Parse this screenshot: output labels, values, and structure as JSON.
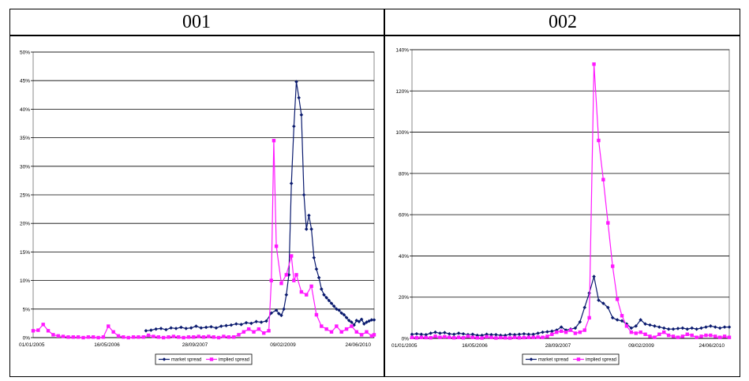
{
  "panels": [
    {
      "title": "001"
    },
    {
      "title": "002"
    }
  ],
  "colors": {
    "market": "#0a1a6e",
    "implied": "#ff19ff"
  },
  "chart_data": [
    {
      "type": "line",
      "x_ticks": [
        "01/01/2005",
        "16/05/2006",
        "28/09/2007",
        "09/02/2009",
        "24/06/2010"
      ],
      "x_range": [
        "2005-01-01",
        "2010-06-24"
      ],
      "y_ticks": [
        "0%",
        "5%",
        "10%",
        "15%",
        "20%",
        "25%",
        "30%",
        "35%",
        "40%",
        "45%",
        "50%"
      ],
      "ylim": [
        0,
        50
      ],
      "grid": "horizontal",
      "legend": "bottom",
      "series": [
        {
          "name": "market spread",
          "color": "#0a1a6e",
          "marker": "diamond",
          "x": [
            1.8,
            1.88,
            1.96,
            2.04,
            2.12,
            2.2,
            2.28,
            2.36,
            2.44,
            2.52,
            2.6,
            2.68,
            2.76,
            2.84,
            2.92,
            3.0,
            3.08,
            3.16,
            3.24,
            3.32,
            3.4,
            3.48,
            3.56,
            3.64,
            3.72,
            3.8,
            3.88,
            3.92,
            3.96,
            4.0,
            4.04,
            4.08,
            4.12,
            4.16,
            4.2,
            4.24,
            4.28,
            4.32,
            4.36,
            4.4,
            4.44,
            4.48,
            4.52,
            4.56,
            4.6,
            4.64,
            4.68,
            4.72,
            4.76,
            4.8,
            4.84,
            4.88,
            4.92,
            4.96,
            5.0,
            5.04,
            5.08,
            5.12,
            5.16,
            5.2,
            5.24,
            5.28,
            5.32,
            5.36,
            5.4,
            5.44
          ],
          "y": [
            1.2,
            1.3,
            1.5,
            1.6,
            1.4,
            1.7,
            1.6,
            1.8,
            1.6,
            1.7,
            2.0,
            1.7,
            1.8,
            1.9,
            1.7,
            2.0,
            2.1,
            2.2,
            2.4,
            2.3,
            2.6,
            2.5,
            2.8,
            2.7,
            2.9,
            4.3,
            4.8,
            4.2,
            3.9,
            5.0,
            7.5,
            11.0,
            27.0,
            37.0,
            44.8,
            42.0,
            39.0,
            25.0,
            19.0,
            21.4,
            19.0,
            14.0,
            12.0,
            10.5,
            8.5,
            7.5,
            7.0,
            6.5,
            6.0,
            5.5,
            5.0,
            4.8,
            4.3,
            4.0,
            3.5,
            3.0,
            2.7,
            2.2,
            3.0,
            2.8,
            3.2,
            2.4,
            2.7,
            2.9,
            3.1,
            3.1
          ]
        },
        {
          "name": "implied spread",
          "color": "#ff19ff",
          "marker": "square",
          "x": [
            0.0,
            0.08,
            0.16,
            0.24,
            0.32,
            0.4,
            0.48,
            0.56,
            0.64,
            0.72,
            0.8,
            0.88,
            0.96,
            1.04,
            1.12,
            1.2,
            1.28,
            1.36,
            1.44,
            1.52,
            1.6,
            1.68,
            1.76,
            1.84,
            1.92,
            2.0,
            2.08,
            2.16,
            2.24,
            2.32,
            2.4,
            2.48,
            2.56,
            2.64,
            2.72,
            2.8,
            2.88,
            2.96,
            3.04,
            3.12,
            3.2,
            3.28,
            3.36,
            3.44,
            3.52,
            3.6,
            3.68,
            3.76,
            3.8,
            3.84,
            3.88,
            3.96,
            4.04,
            4.12,
            4.16,
            4.2,
            4.28,
            4.36,
            4.44,
            4.52,
            4.6,
            4.68,
            4.76,
            4.84,
            4.92,
            5.0,
            5.08,
            5.16,
            5.24,
            5.32,
            5.4,
            5.44
          ],
          "y": [
            1.2,
            1.3,
            2.3,
            1.2,
            0.5,
            0.3,
            0.2,
            0.1,
            0.1,
            0.1,
            0.0,
            0.1,
            0.1,
            0.0,
            0.1,
            2.0,
            1.0,
            0.3,
            0.1,
            0.0,
            0.1,
            0.1,
            0.1,
            0.4,
            0.2,
            0.1,
            0.0,
            0.1,
            0.2,
            0.1,
            0.0,
            0.1,
            0.1,
            0.2,
            0.1,
            0.2,
            0.1,
            0.0,
            0.2,
            0.1,
            0.1,
            0.5,
            1.0,
            1.5,
            1.0,
            1.5,
            0.8,
            1.2,
            10.0,
            34.5,
            16.0,
            9.5,
            11.0,
            14.3,
            10.0,
            11.0,
            8.0,
            7.5,
            9.0,
            4.0,
            2.0,
            1.5,
            1.0,
            2.0,
            1.0,
            1.5,
            2.0,
            1.0,
            0.5,
            1.0,
            0.3,
            0.5
          ]
        }
      ]
    },
    {
      "type": "line",
      "x_ticks": [
        "01/01/2005",
        "16/05/2006",
        "28/09/2007",
        "09/02/2009",
        "24/06/2010"
      ],
      "x_range": [
        "2005-01-01",
        "2010-06-24"
      ],
      "y_ticks": [
        "0%",
        "20%",
        "40%",
        "60%",
        "80%",
        "100%",
        "120%",
        "140%"
      ],
      "ylim": [
        0,
        140
      ],
      "grid": "horizontal",
      "legend": "bottom",
      "series": [
        {
          "name": "market spread",
          "color": "#0a1a6e",
          "marker": "diamond",
          "x": [
            0.0,
            0.08,
            0.16,
            0.24,
            0.32,
            0.4,
            0.48,
            0.56,
            0.64,
            0.72,
            0.8,
            0.88,
            0.96,
            1.04,
            1.12,
            1.2,
            1.28,
            1.36,
            1.44,
            1.52,
            1.6,
            1.68,
            1.76,
            1.84,
            1.92,
            2.0,
            2.08,
            2.16,
            2.24,
            2.32,
            2.4,
            2.48,
            2.56,
            2.64,
            2.72,
            2.8,
            2.88,
            2.96,
            3.04,
            3.12,
            3.2,
            3.28,
            3.36,
            3.44,
            3.52,
            3.6,
            3.68,
            3.76,
            3.84,
            3.92,
            4.0,
            4.08,
            4.16,
            4.24,
            4.32,
            4.4,
            4.48,
            4.56,
            4.64,
            4.72,
            4.8,
            4.88,
            4.96,
            5.04,
            5.12,
            5.2,
            5.28,
            5.36,
            5.44
          ],
          "y": [
            2.0,
            2.2,
            2.0,
            1.8,
            2.5,
            3.0,
            2.5,
            2.8,
            2.2,
            2.0,
            2.5,
            2.2,
            1.8,
            2.0,
            1.5,
            1.5,
            2.0,
            1.8,
            1.8,
            1.5,
            1.5,
            2.0,
            1.8,
            2.0,
            2.2,
            2.0,
            2.0,
            2.5,
            3.0,
            3.2,
            3.5,
            4.0,
            5.5,
            4.0,
            4.5,
            5.0,
            8.0,
            15.0,
            22.0,
            30.0,
            18.5,
            17.0,
            15.0,
            10.0,
            9.0,
            8.5,
            7.0,
            5.0,
            6.0,
            9.0,
            7.0,
            6.5,
            6.0,
            5.5,
            5.0,
            4.5,
            4.5,
            4.8,
            5.0,
            4.5,
            5.0,
            4.5,
            5.0,
            5.5,
            6.0,
            5.5,
            5.0,
            5.5,
            5.5
          ]
        },
        {
          "name": "implied spread",
          "color": "#ff19ff",
          "marker": "square",
          "x": [
            0.0,
            0.08,
            0.16,
            0.24,
            0.32,
            0.4,
            0.48,
            0.56,
            0.64,
            0.72,
            0.8,
            0.88,
            0.96,
            1.04,
            1.12,
            1.2,
            1.28,
            1.36,
            1.44,
            1.52,
            1.6,
            1.68,
            1.76,
            1.84,
            1.92,
            2.0,
            2.08,
            2.16,
            2.24,
            2.32,
            2.4,
            2.48,
            2.56,
            2.64,
            2.72,
            2.8,
            2.88,
            2.96,
            3.04,
            3.12,
            3.2,
            3.28,
            3.36,
            3.44,
            3.52,
            3.6,
            3.68,
            3.76,
            3.84,
            3.92,
            4.0,
            4.08,
            4.16,
            4.24,
            4.32,
            4.4,
            4.48,
            4.56,
            4.64,
            4.72,
            4.8,
            4.88,
            4.96,
            5.04,
            5.12,
            5.2,
            5.28,
            5.36,
            5.44
          ],
          "y": [
            0.5,
            0.3,
            0.5,
            0.4,
            0.3,
            1.0,
            0.5,
            0.8,
            0.5,
            0.3,
            0.5,
            0.3,
            1.0,
            0.5,
            0.3,
            0.2,
            0.8,
            0.5,
            0.2,
            0.4,
            0.3,
            0.2,
            0.5,
            0.3,
            0.4,
            0.5,
            0.5,
            0.6,
            0.5,
            1.0,
            2.0,
            3.0,
            3.5,
            3.0,
            4.0,
            2.5,
            3.0,
            4.0,
            10.0,
            133.0,
            96.0,
            77.0,
            56.0,
            35.0,
            19.0,
            11.0,
            6.0,
            3.0,
            2.5,
            3.0,
            2.0,
            1.0,
            0.5,
            2.0,
            3.0,
            1.5,
            1.0,
            0.5,
            1.0,
            2.0,
            1.5,
            0.5,
            1.0,
            1.5,
            1.5,
            1.0,
            0.5,
            1.0,
            0.5
          ]
        }
      ]
    }
  ]
}
